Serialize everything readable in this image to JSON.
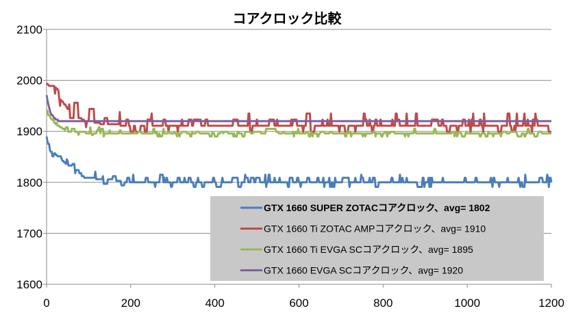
{
  "chart_data": {
    "type": "line",
    "title": "コアクロック比較",
    "xlabel": "",
    "ylabel": "",
    "xlim": [
      0,
      1200
    ],
    "ylim": [
      1600,
      2100
    ],
    "x_ticks": [
      "0",
      "200",
      "400",
      "600",
      "800",
      "1000",
      "1200"
    ],
    "y_ticks": [
      "1600",
      "1700",
      "1800",
      "1900",
      "2000",
      "2100"
    ],
    "grid": "horizontal",
    "legend_position": "bottom-right",
    "series": [
      {
        "name": "GTX 1660 SUPER ZOTACコアクロック、avg= 1802",
        "color": "#4a7ebb",
        "bold_label": true,
        "x": [
          0,
          5,
          10,
          20,
          30,
          40,
          50,
          60,
          70,
          80,
          90,
          100,
          120,
          150,
          200,
          300,
          400,
          500,
          600,
          700,
          800,
          900,
          1000,
          1100,
          1200
        ],
        "y": [
          1890,
          1870,
          1860,
          1855,
          1850,
          1840,
          1835,
          1830,
          1825,
          1815,
          1810,
          1810,
          1805,
          1805,
          1800,
          1800,
          1800,
          1800,
          1800,
          1800,
          1800,
          1800,
          1800,
          1800,
          1800
        ],
        "noise": 8
      },
      {
        "name": "GTX 1660 Ti ZOTAC AMPコアクロック、avg= 1910",
        "color": "#be4b48",
        "bold_label": false,
        "x": [
          0,
          5,
          10,
          20,
          30,
          40,
          50,
          60,
          70,
          80,
          90,
          100,
          120,
          150,
          200,
          300,
          400,
          500,
          600,
          700,
          800,
          900,
          1000,
          1100,
          1200
        ],
        "y": [
          1995,
          1990,
          1985,
          1975,
          1965,
          1955,
          1945,
          1935,
          1930,
          1925,
          1920,
          1920,
          1915,
          1915,
          1910,
          1910,
          1910,
          1910,
          1910,
          1910,
          1910,
          1910,
          1910,
          1910,
          1910
        ],
        "noise": 12
      },
      {
        "name": "GTX 1660 Ti EVGA SCコアクロック、avg= 1895",
        "color": "#98b954",
        "bold_label": false,
        "x": [
          0,
          5,
          10,
          20,
          30,
          40,
          50,
          60,
          80,
          100,
          150,
          200,
          300,
          400,
          500,
          600,
          700,
          800,
          900,
          1000,
          1100,
          1200
        ],
        "y": [
          1945,
          1935,
          1925,
          1915,
          1910,
          1905,
          1900,
          1900,
          1898,
          1897,
          1896,
          1895,
          1895,
          1895,
          1895,
          1895,
          1895,
          1895,
          1895,
          1895,
          1895,
          1895
        ],
        "noise": 5
      },
      {
        "name": "GTX 1660 EVGA SCコアクロック、avg= 1920",
        "color": "#7d60a0",
        "bold_label": false,
        "x": [
          0,
          5,
          10,
          20,
          30,
          40,
          50,
          100,
          200,
          400,
          600,
          800,
          1000,
          1200
        ],
        "y": [
          1970,
          1950,
          1935,
          1925,
          1920,
          1920,
          1920,
          1920,
          1920,
          1920,
          1920,
          1920,
          1920,
          1920
        ],
        "noise": 0
      }
    ]
  }
}
